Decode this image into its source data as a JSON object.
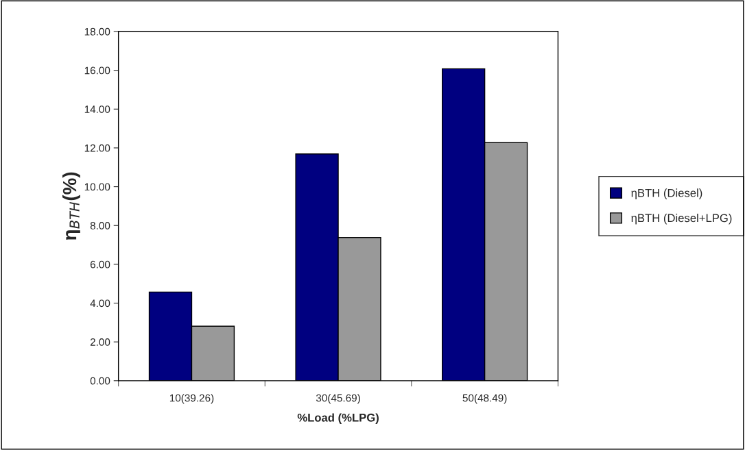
{
  "chart_data": {
    "type": "bar",
    "xlabel": "%Load (%LPG)",
    "ylabel": "η$_{BTH}$(%)",
    "categories": [
      "10(39.26)",
      "30(45.69)",
      "50(48.49)"
    ],
    "series": [
      {
        "name": "ηBTH (Diesel)",
        "color": "#000080",
        "values": [
          4.57,
          11.69,
          16.08
        ]
      },
      {
        "name": "ηBTH (Diesel+LPG)",
        "color": "#999999",
        "values": [
          2.81,
          7.38,
          12.27
        ]
      }
    ],
    "ylim": [
      0,
      18
    ],
    "yticks": [
      {
        "value": 0,
        "label": "0.00"
      },
      {
        "value": 2,
        "label": "2.00"
      },
      {
        "value": 4,
        "label": "4.00"
      },
      {
        "value": 6,
        "label": "6.00"
      },
      {
        "value": 8,
        "label": "8.00"
      },
      {
        "value": 10,
        "label": "10.00"
      },
      {
        "value": 12,
        "label": "12.00"
      },
      {
        "value": 14,
        "label": "14.00"
      },
      {
        "value": 16,
        "label": "16.00"
      },
      {
        "value": 18,
        "label": "18.00"
      }
    ],
    "grid": false,
    "legend": "right"
  }
}
